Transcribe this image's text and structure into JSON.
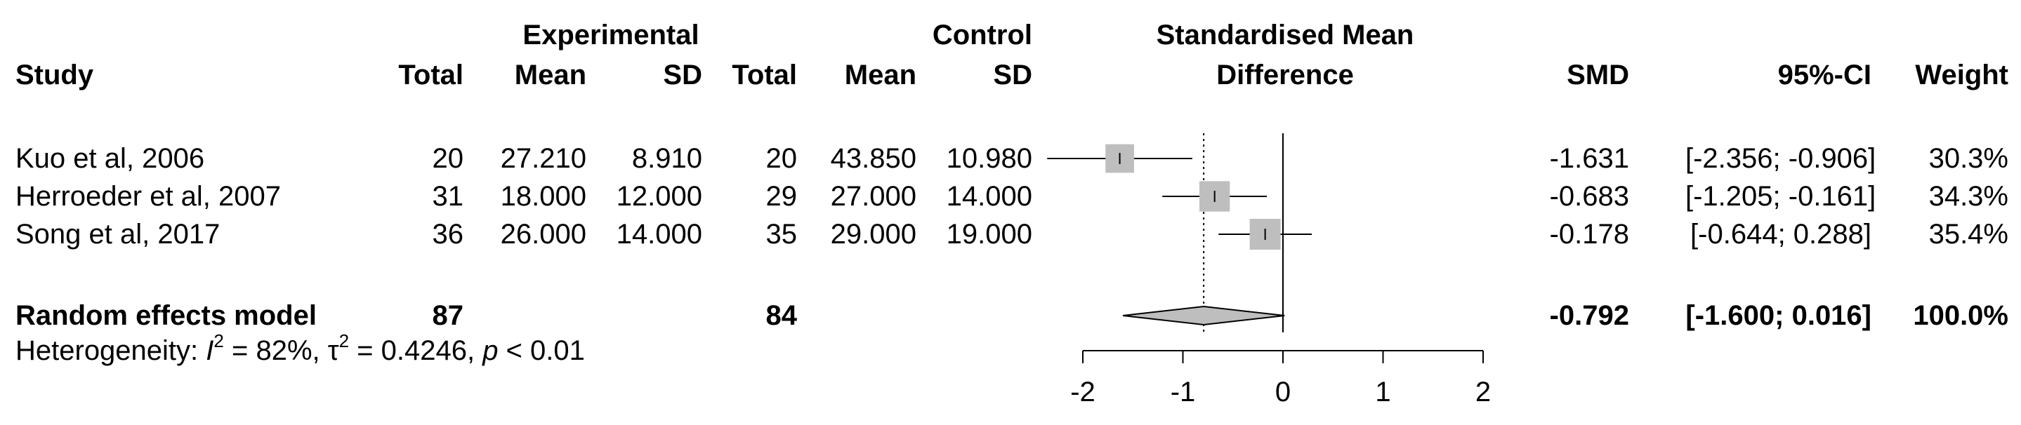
{
  "headers": {
    "group1": "Experimental",
    "group2": "Control",
    "smd_title_line1": "Standardised Mean",
    "smd_title_line2": "Difference",
    "study": "Study",
    "total1": "Total",
    "mean1": "Mean",
    "sd1": "SD",
    "total2": "Total",
    "mean2": "Mean",
    "sd2": "SD",
    "smd": "SMD",
    "ci": "95%-CI",
    "weight": "Weight"
  },
  "studies": [
    {
      "study": "Kuo et al, 2006",
      "e_total": "20",
      "e_mean": "27.210",
      "e_sd": "8.910",
      "c_total": "20",
      "c_mean": "43.850",
      "c_sd": "10.980",
      "smd": "-1.631",
      "ci": "[-2.356; -0.906]",
      "weight": "30.3%"
    },
    {
      "study": "Herroeder et al, 2007",
      "e_total": "31",
      "e_mean": "18.000",
      "e_sd": "12.000",
      "c_total": "29",
      "c_mean": "27.000",
      "c_sd": "14.000",
      "smd": "-0.683",
      "ci": "[-1.205; -0.161]",
      "weight": "34.3%"
    },
    {
      "study": "Song et al, 2017",
      "e_total": "36",
      "e_mean": "26.000",
      "e_sd": "14.000",
      "c_total": "35",
      "c_mean": "29.000",
      "c_sd": "19.000",
      "smd": "-0.178",
      "ci": "[-0.644; 0.288]",
      "weight": "35.4%"
    }
  ],
  "pooled": {
    "label": "Random effects model",
    "e_total": "87",
    "c_total": "84",
    "smd": "-0.792",
    "ci": "[-1.600; 0.016]",
    "weight": "100.0%"
  },
  "heterogeneity": {
    "prefix": "Heterogeneity: ",
    "i2_symbol": "I",
    "i2_sup": "2",
    "i2_value": " = 82%, ",
    "tau_symbol": "τ",
    "tau_sup": "2",
    "tau_value": " = 0.4246, ",
    "p_symbol": "p",
    "p_value": " < 0.01"
  },
  "chart_data": {
    "type": "forest",
    "xlim": [
      -2,
      2
    ],
    "ticks": [
      -2,
      -1,
      0,
      1,
      2
    ],
    "tick_labels": [
      "-2",
      "-1",
      "0",
      "1",
      "2"
    ],
    "null_line": 0,
    "pooled_reference_line": -0.792,
    "series": [
      {
        "name": "Kuo et al, 2006",
        "estimate": -1.631,
        "lower": -2.356,
        "upper": -0.906,
        "weight": 30.3
      },
      {
        "name": "Herroeder et al, 2007",
        "estimate": -0.683,
        "lower": -1.205,
        "upper": -0.161,
        "weight": 34.3
      },
      {
        "name": "Song et al, 2017",
        "estimate": -0.178,
        "lower": -0.644,
        "upper": 0.288,
        "weight": 35.4
      }
    ],
    "pooled": {
      "name": "Random effects model",
      "estimate": -0.792,
      "lower": -1.6,
      "upper": 0.016
    },
    "colors": {
      "square": "#bebebe",
      "diamond": "#bebebe",
      "line": "#000000"
    }
  }
}
